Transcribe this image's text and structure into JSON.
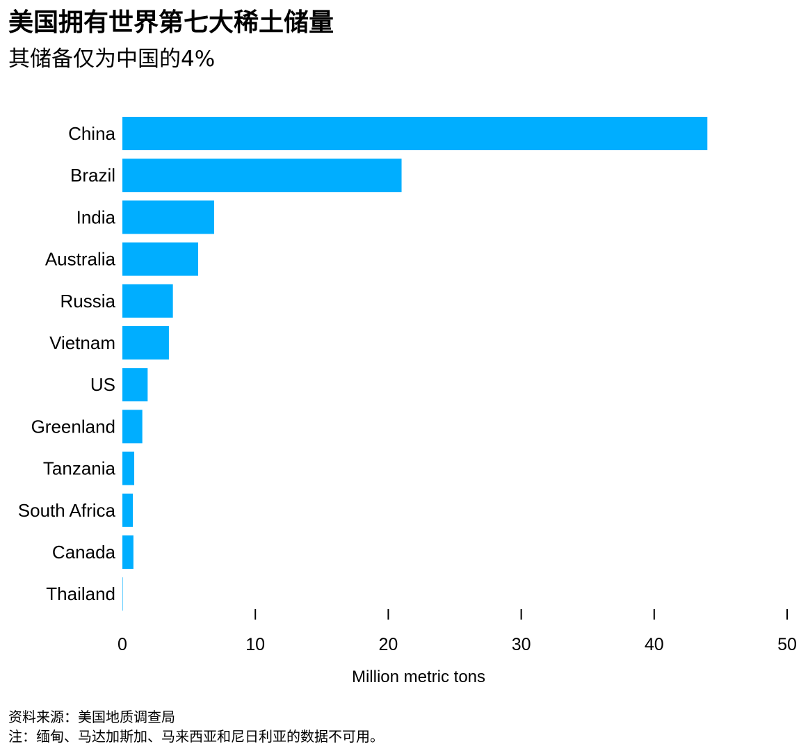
{
  "title": "美国拥有世界第七大稀土储量",
  "subtitle": "其储备仅为中国的4%",
  "source": "资料来源：美国地质调查局",
  "note": "注：缅甸、马达加斯加、马来西亚和尼日利亚的数据不可用。",
  "chart_data": {
    "type": "bar",
    "orientation": "horizontal",
    "categories": [
      "China",
      "Brazil",
      "India",
      "Australia",
      "Russia",
      "Vietnam",
      "US",
      "Greenland",
      "Tanzania",
      "South Africa",
      "Canada",
      "Thailand"
    ],
    "values": [
      44,
      21,
      6.9,
      5.7,
      3.8,
      3.5,
      1.9,
      1.5,
      0.89,
      0.79,
      0.83,
      0.0045
    ],
    "xlabel": "Million metric tons",
    "ylabel": "",
    "xlim": [
      0,
      50
    ],
    "xticks": [
      0,
      10,
      20,
      30,
      40,
      50
    ],
    "grid": false,
    "bar_color": "#00aeff"
  }
}
